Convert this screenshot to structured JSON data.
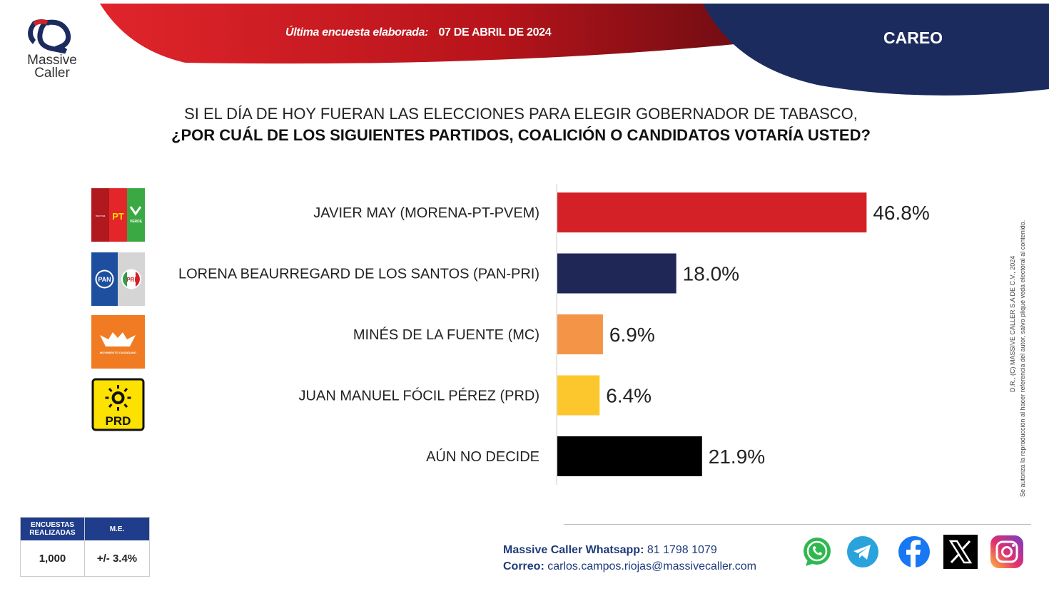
{
  "header": {
    "brand_line1": "Massive",
    "brand_line2": "Caller",
    "survey_label": "Última encuesta elaborada:",
    "survey_date": "07 DE ABRIL DE 2024",
    "section": "CAREO",
    "colors": {
      "red": "#c4161c",
      "navy": "#1c2b5e"
    }
  },
  "question": {
    "line1": "SI EL DÍA DE HOY FUERAN LAS ELECCIONES PARA ELEGIR GOBERNADOR DE TABASCO,",
    "line2": "¿POR CUÁL DE LOS SIGUIENTES PARTIDOS, COALICIÓN O CANDIDATOS  VOTARÍA USTED?"
  },
  "chart_data": {
    "type": "bar",
    "orientation": "horizontal",
    "categories": [
      "JAVIER MAY (MORENA-PT-PVEM)",
      "LORENA BEAURREGARD DE LOS SANTOS (PAN-PRI)",
      "MINÉS DE LA FUENTE (MC)",
      "JUAN MANUEL FÓCIL PÉREZ (PRD)",
      "AÚN NO DECIDE"
    ],
    "values": [
      46.8,
      18.0,
      6.9,
      6.4,
      21.9
    ],
    "value_labels": [
      "46.8%",
      "18.0%",
      "6.9%",
      "6.4%",
      "21.9%"
    ],
    "colors": [
      "#d42027",
      "#1e2756",
      "#f39447",
      "#fcc72d",
      "#000000"
    ],
    "xlim": [
      0,
      100
    ],
    "grid": false,
    "legend": false
  },
  "party_logos": {
    "morena": {
      "line1": "morena",
      "pt": "PT",
      "verde": "VERDE"
    },
    "pan": "PAN",
    "pri": "PRI",
    "mc": "MOVIMIENTO CIUDADANO",
    "prd": "PRD"
  },
  "side_note": {
    "line1": "D.R., (C) MASSIVE CALLER S.A DE C.V., 2024",
    "line2": "Se autoriza la reproducción al hacer referencia del autor, salvo plique veda electoral al contenido."
  },
  "stats": {
    "col1_header": "ENCUESTAS REALIZADAS",
    "col2_header": "M.E.",
    "col1_value": "1,000",
    "col2_value": "+/- 3.4%"
  },
  "contact": {
    "whatsapp_label": "Massive Caller Whatsapp:",
    "whatsapp_value": "81 1798  1079",
    "email_label": "Correo:",
    "email_value": "carlos.campos.riojas@massivecaller.com"
  },
  "social_icons": [
    "whatsapp-icon",
    "telegram-icon",
    "facebook-icon",
    "x-icon",
    "instagram-icon"
  ]
}
